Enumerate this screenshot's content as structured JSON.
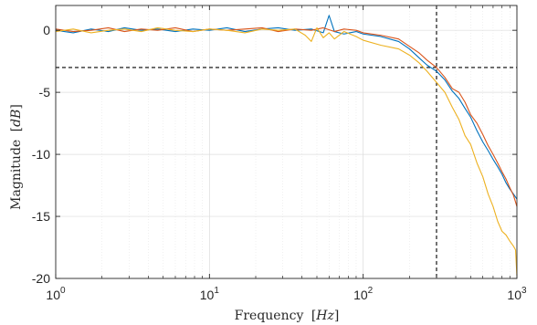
{
  "chart_data": {
    "type": "line",
    "xscale": "log",
    "xlim": [
      1,
      1000
    ],
    "ylim": [
      -20,
      2
    ],
    "grid": true,
    "xlabel": {
      "text": "Frequency",
      "unit": "Hz"
    },
    "ylabel": {
      "text": "Magnitude",
      "unit": "dB"
    },
    "xticks": [
      {
        "value": 1,
        "base": "10",
        "exp": "0"
      },
      {
        "value": 10,
        "base": "10",
        "exp": "1"
      },
      {
        "value": 100,
        "base": "10",
        "exp": "2"
      },
      {
        "value": 1000,
        "base": "10",
        "exp": "3"
      }
    ],
    "yticks": [
      {
        "value": 0,
        "label": "0"
      },
      {
        "value": -5,
        "label": "-5"
      },
      {
        "value": -10,
        "label": "-10"
      },
      {
        "value": -15,
        "label": "-15"
      },
      {
        "value": -20,
        "label": "-20"
      }
    ],
    "reference_lines": [
      {
        "orientation": "horizontal",
        "value": -3,
        "style": "dashed",
        "color": "#000000"
      },
      {
        "orientation": "vertical",
        "value": 300,
        "style": "dashed",
        "color": "#000000"
      }
    ],
    "series": [
      {
        "color": "#0072BD",
        "x": [
          1,
          1.3,
          1.7,
          2.2,
          2.8,
          3.6,
          4.6,
          6,
          7.8,
          10,
          13,
          17,
          22,
          28,
          36,
          46,
          55,
          60,
          65,
          75,
          90,
          100,
          130,
          170,
          200,
          230,
          260,
          300,
          340,
          380,
          420,
          460,
          500,
          550,
          600,
          650,
          700,
          750,
          800,
          850,
          900,
          950,
          1000
        ],
        "y": [
          0,
          -0.2,
          0.1,
          -0.1,
          0.2,
          0,
          0.1,
          -0.1,
          0.1,
          0,
          0.2,
          -0.1,
          0.1,
          0.2,
          0,
          0.1,
          -0.2,
          1.2,
          -0.1,
          -0.3,
          -0.1,
          -0.3,
          -0.5,
          -0.9,
          -1.5,
          -2.2,
          -2.8,
          -3.3,
          -4,
          -4.9,
          -5.5,
          -6.3,
          -7,
          -8.1,
          -9,
          -9.7,
          -10.4,
          -11,
          -11.6,
          -12.3,
          -12.8,
          -13.2,
          -13.6
        ]
      },
      {
        "color": "#D95319",
        "x": [
          1,
          1.3,
          1.7,
          2.2,
          2.8,
          3.6,
          4.6,
          6,
          7.8,
          10,
          13,
          17,
          22,
          28,
          36,
          46,
          55,
          65,
          75,
          90,
          100,
          130,
          170,
          200,
          230,
          260,
          300,
          340,
          380,
          420,
          460,
          500,
          550,
          600,
          650,
          700,
          750,
          800,
          850,
          900,
          950,
          1000
        ],
        "y": [
          0.1,
          -0.1,
          0,
          0.2,
          -0.1,
          0.1,
          0,
          0.2,
          -0.1,
          0.1,
          0,
          0.1,
          0.2,
          -0.1,
          0.1,
          0,
          0.2,
          -0.1,
          0.1,
          0,
          -0.2,
          -0.4,
          -0.7,
          -1.3,
          -1.8,
          -2.4,
          -3,
          -3.8,
          -4.7,
          -5,
          -5.8,
          -6.8,
          -7.5,
          -8.4,
          -9.3,
          -10,
          -10.7,
          -11.4,
          -12,
          -12.7,
          -13.3,
          -14.2
        ]
      },
      {
        "color": "#EDB120",
        "x": [
          1,
          1.3,
          1.7,
          2.2,
          2.8,
          3.6,
          4.6,
          6,
          7.8,
          10,
          13,
          17,
          22,
          28,
          36,
          42,
          46,
          50,
          55,
          60,
          65,
          75,
          90,
          100,
          130,
          170,
          200,
          230,
          260,
          300,
          340,
          380,
          420,
          460,
          500,
          550,
          600,
          650,
          700,
          750,
          800,
          850,
          900,
          950,
          980,
          1000
        ],
        "y": [
          -0.1,
          0.1,
          -0.2,
          0,
          0.1,
          -0.1,
          0.2,
          0,
          -0.1,
          0.1,
          0,
          -0.2,
          0.1,
          0,
          0.1,
          -0.4,
          -0.9,
          0.2,
          -0.6,
          -0.2,
          -0.7,
          -0.1,
          -0.5,
          -0.8,
          -1.2,
          -1.5,
          -2,
          -2.6,
          -3.3,
          -4.2,
          -5,
          -6.2,
          -7.2,
          -8.5,
          -9.2,
          -10.7,
          -11.8,
          -13.2,
          -14.2,
          -15.4,
          -16.2,
          -16.5,
          -17,
          -17.4,
          -17.7,
          -19.8
        ]
      }
    ]
  }
}
